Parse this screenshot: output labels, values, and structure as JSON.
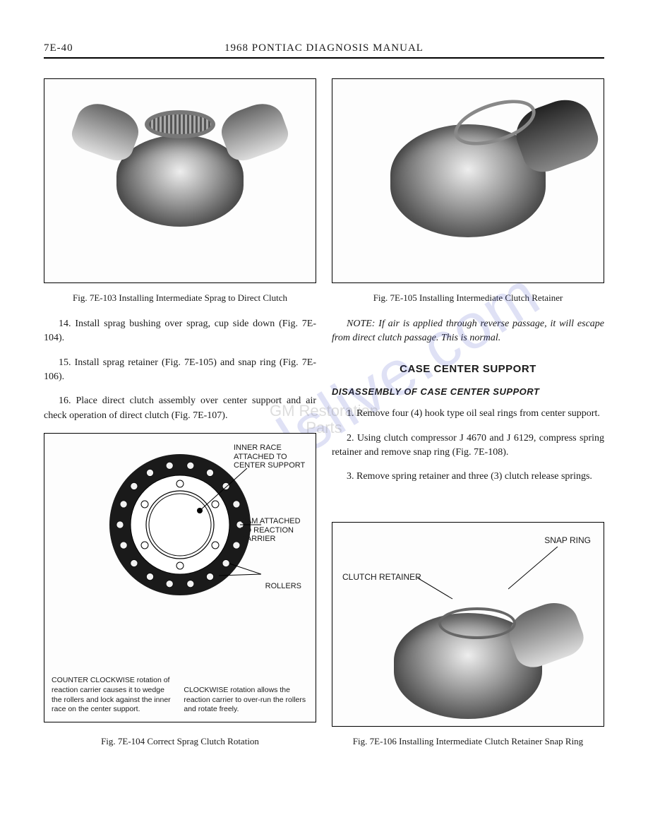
{
  "header": {
    "page_number": "7E-40",
    "title": "1968 PONTIAC DIAGNOSIS MANUAL"
  },
  "watermark": {
    "main": "manualslive.com",
    "stamp_line1": "GM Restoration",
    "stamp_line2": "Parts"
  },
  "left": {
    "fig103": {
      "caption": "Fig. 7E-103   Installing Intermediate Sprag to Direct Clutch"
    },
    "para14": "14. Install sprag bushing over sprag, cup side down (Fig. 7E-104).",
    "para15": "15. Install sprag retainer (Fig. 7E-105) and snap ring (Fig. 7E-106).",
    "para16": "16. Place direct clutch assembly over center support and air check operation of direct clutch (Fig. 7E-107).",
    "fig104": {
      "caption": "Fig. 7E-104   Correct Sprag Clutch Rotation",
      "labels": {
        "inner_race": "INNER RACE ATTACHED TO CENTER SUPPORT",
        "cam": "CAM ATTACHED TO REACTION CARRIER",
        "rollers": "ROLLERS"
      },
      "note_ccw": "COUNTER CLOCKWISE rotation of reaction carrier causes it to wedge the rollers and lock against the inner race on the center support.",
      "note_cw": "CLOCKWISE rotation allows the reaction carrier to over-run the rollers and rotate freely.",
      "style": {
        "outer_radius": 100,
        "inner_radius": 48,
        "roller_count": 18,
        "roller_radius_small": 5,
        "ring_stroke": "#111111",
        "ring_fill": "#222222",
        "roller_fill": "#f2f2f2",
        "hole_fill": "#ffffff"
      }
    }
  },
  "right": {
    "fig105": {
      "caption": "Fig. 7E-105   Installing Intermediate Clutch Retainer"
    },
    "note": "NOTE:   If air is applied through reverse passage, it will escape from direct clutch passage. This is normal.",
    "section_heading": "CASE CENTER SUPPORT",
    "sub_heading": "DISASSEMBLY OF CASE CENTER SUPPORT",
    "para1": "1. Remove four (4) hook type oil seal rings from center support.",
    "para2": "2. Using clutch compressor J 4670 and J 6129, compress spring retainer and remove snap ring (Fig. 7E-108).",
    "para3": "3. Remove spring retainer and three (3) clutch release springs.",
    "fig106": {
      "caption": "Fig. 7E-106   Installing Intermediate Clutch Retainer Snap Ring",
      "labels": {
        "snap_ring": "SNAP RING",
        "clutch_retainer": "CLUTCH RETAINER"
      }
    }
  }
}
